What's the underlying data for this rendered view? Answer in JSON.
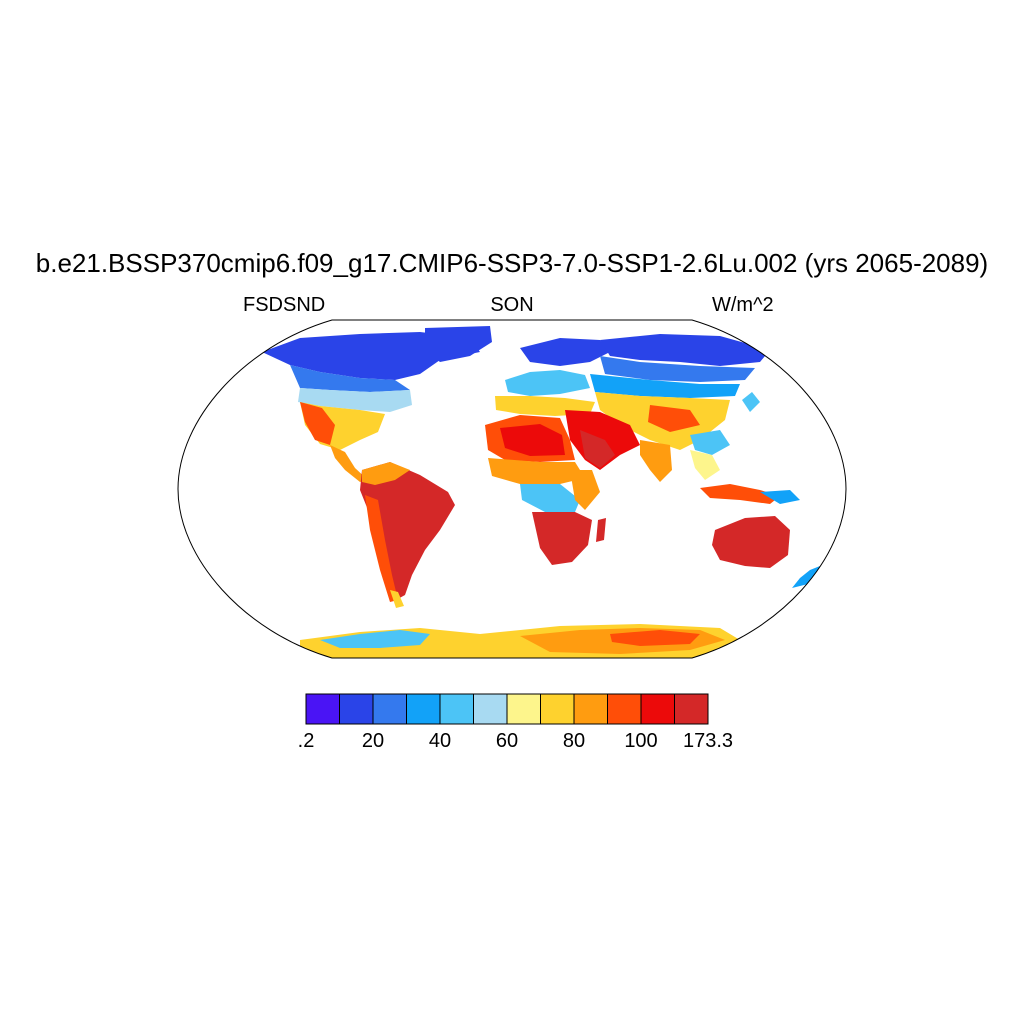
{
  "title": "b.e21.BSSP370cmip6.f09_g17.CMIP6-SSP3-7.0-SSP1-2.6Lu.002 (yrs 2065-2089)",
  "variable": "FSDSND",
  "season": "SON",
  "units": "W/m^2",
  "colorbar": {
    "colors": [
      "#4a14f5",
      "#2a44e8",
      "#3479ee",
      "#12a2f8",
      "#4cc4f6",
      "#a8daf2",
      "#fdf58c",
      "#fed22e",
      "#ff9c10",
      "#ff4e08",
      "#ec0a0a",
      "#d42828"
    ],
    "labels": [
      ".2",
      "20",
      "40",
      "60",
      "80",
      "100",
      "173.3"
    ]
  }
}
